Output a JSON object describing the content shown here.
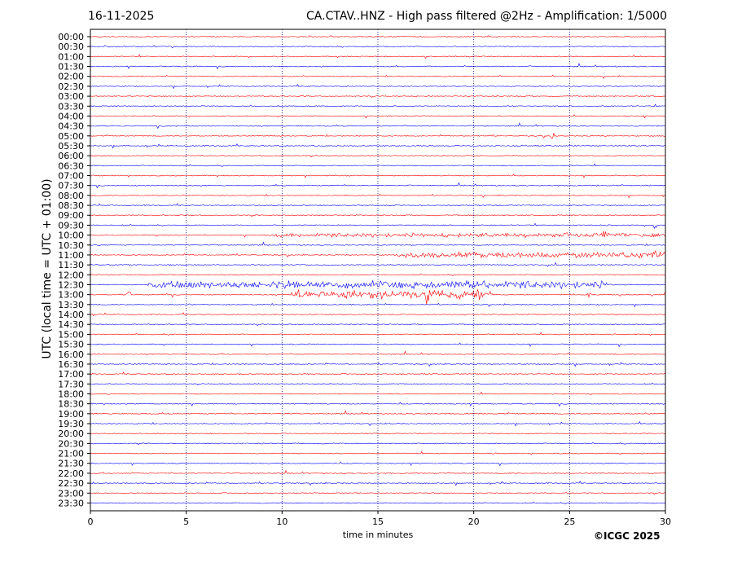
{
  "header": {
    "date": "16-11-2025",
    "title": "CA.CTAV..HNZ - High pass filtered @2Hz - Amplification: 1/5000"
  },
  "footer": {
    "credit": "©ICGC 2025"
  },
  "chart_data": {
    "type": "line",
    "title": "CA.CTAV..HNZ - High pass filtered @2Hz - Amplification: 1/5000",
    "xlabel": "time in minutes",
    "ylabel": "UTC (local time = UTC + 01:00)",
    "xlim": [
      0,
      30
    ],
    "x_ticks": [
      0,
      5,
      10,
      15,
      20,
      25,
      30
    ],
    "grid": "vertical dotted lines at x = 5, 10, 15, 20, 25",
    "trace_colors": [
      "#ff0000",
      "#0000ff"
    ],
    "rows": [
      "00:00",
      "00:30",
      "01:00",
      "01:30",
      "02:00",
      "02:30",
      "03:00",
      "03:30",
      "04:00",
      "04:30",
      "05:00",
      "05:30",
      "06:00",
      "06:30",
      "07:00",
      "07:30",
      "08:00",
      "08:30",
      "09:00",
      "09:30",
      "10:00",
      "10:30",
      "11:00",
      "11:30",
      "12:00",
      "12:30",
      "13:00",
      "13:30",
      "14:00",
      "14:30",
      "15:00",
      "15:30",
      "16:00",
      "16:30",
      "17:00",
      "17:30",
      "18:00",
      "18:30",
      "19:00",
      "19:30",
      "20:00",
      "20:30",
      "21:00",
      "21:30",
      "22:00",
      "22:30",
      "23:00",
      "23:30"
    ],
    "activity": [
      {
        "row": "05:00",
        "x": 24.1,
        "amplitude": 0.45
      },
      {
        "row": "09:30",
        "x": 29.5,
        "amplitude": 0.35
      },
      {
        "row": "10:00",
        "from": 9.2,
        "to": 30,
        "amplitude": 0.25
      },
      {
        "row": "10:00",
        "x": 26.8,
        "amplitude": 0.5
      },
      {
        "row": "11:00",
        "from": 16,
        "to": 30,
        "amplitude": 0.35
      },
      {
        "row": "11:00",
        "x": 29.4,
        "amplitude": 0.8
      },
      {
        "row": "12:30",
        "from": 3,
        "to": 27,
        "amplitude": 0.45
      },
      {
        "row": "13:00",
        "from": 10.5,
        "to": 21,
        "amplitude": 0.55
      },
      {
        "row": "13:00",
        "x": 17.6,
        "amplitude": 1.2
      },
      {
        "row": "13:00",
        "x": 2.0,
        "amplitude": 0.5
      },
      {
        "row": "13:00",
        "x": 26.0,
        "amplitude": 0.4
      }
    ]
  }
}
